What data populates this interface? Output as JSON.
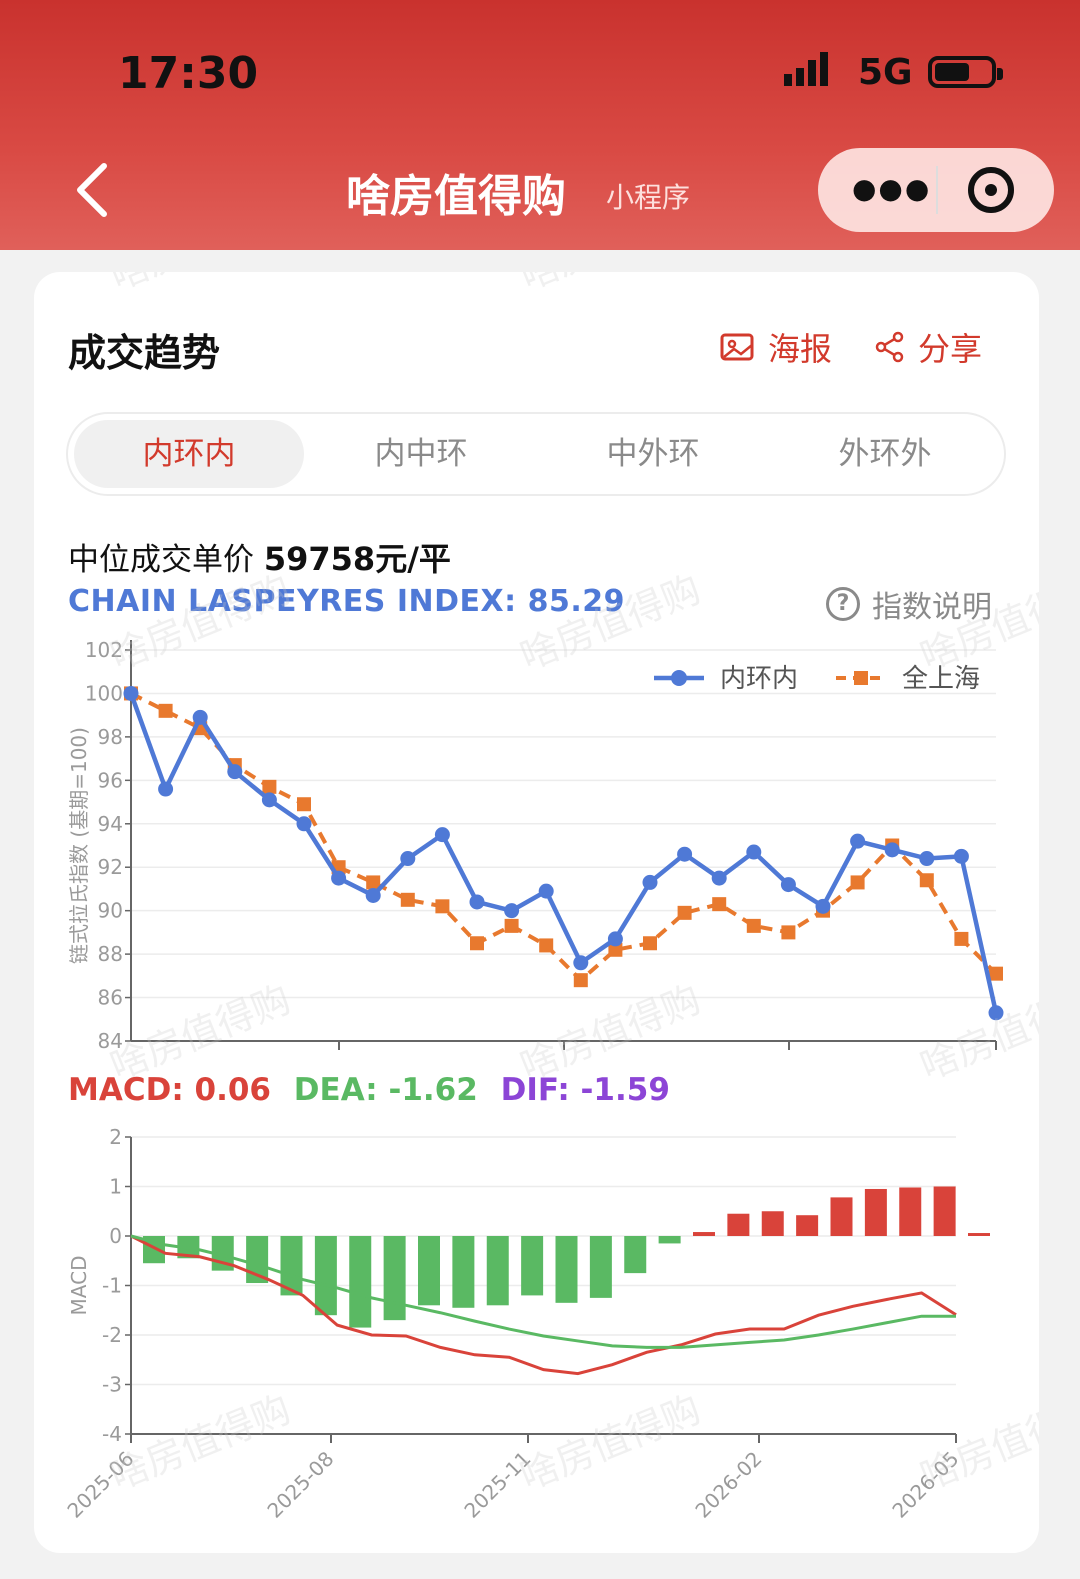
{
  "status_bar": {
    "time": "17:30",
    "network": "5G"
  },
  "nav": {
    "title": "啥房值得购",
    "subtitle": "小程序",
    "menu_icon": "more-dots-icon",
    "close_icon": "target-circle-icon",
    "back_icon": "chevron-left-icon"
  },
  "card": {
    "title": "成交趋势",
    "actions": [
      {
        "label": "海报",
        "icon": "image-icon"
      },
      {
        "label": "分享",
        "icon": "share-icon"
      }
    ],
    "tabs": [
      "内环内",
      "内中环",
      "中外环",
      "外环外"
    ],
    "active_tab": 0,
    "price_label": "中位成交单价",
    "price_value": "59758元/平",
    "index_label": "CHAIN LASPEYRES INDEX: 85.29",
    "index_help": "指数说明",
    "help_icon": "question-circle-icon",
    "macd_summary": [
      {
        "text": "MACD: 0.06",
        "color": "#d9433a"
      },
      {
        "text": "DEA: -1.62",
        "color": "#5ab963"
      },
      {
        "text": "DIF: -1.59",
        "color": "#8c45d6"
      }
    ]
  },
  "watermark": "啥房值得购",
  "chart_data": [
    {
      "type": "line",
      "ylabel": "链式拉氏指数 (基期=100)",
      "ylim": [
        84,
        102
      ],
      "yticks": [
        84,
        86,
        88,
        90,
        92,
        94,
        96,
        98,
        100,
        102
      ],
      "legend_position": "top-right",
      "grid": true,
      "series": [
        {
          "name": "内环内",
          "color": "#4f79d6",
          "style": "solid-circle",
          "values": [
            100.0,
            95.6,
            98.9,
            96.4,
            95.1,
            94.0,
            91.5,
            90.7,
            92.4,
            93.5,
            90.4,
            90.0,
            90.9,
            87.6,
            88.7,
            91.3,
            92.6,
            91.5,
            92.7,
            91.2,
            90.2,
            93.2,
            92.8,
            92.4,
            92.5,
            85.3
          ]
        },
        {
          "name": "全上海",
          "color": "#e8792e",
          "style": "dashed-square",
          "values": [
            100.0,
            99.2,
            98.4,
            96.7,
            95.7,
            94.9,
            92.0,
            91.3,
            90.5,
            90.2,
            88.5,
            89.3,
            88.4,
            86.8,
            88.2,
            88.5,
            89.9,
            90.3,
            89.3,
            89.0,
            90.0,
            91.3,
            93.0,
            91.4,
            88.7,
            87.1
          ]
        }
      ]
    },
    {
      "type": "bar",
      "ylabel": "MACD",
      "ylim": [
        -4,
        2
      ],
      "yticks": [
        -4,
        -3,
        -2,
        -1,
        0,
        1,
        2
      ],
      "grid": true,
      "x_tick_labels": [
        "2025-06",
        "2025-08",
        "2025-11",
        "2026-02",
        "2026-05"
      ],
      "pos_color": "#d9433a",
      "neg_color": "#5ab963",
      "histogram": [
        -0.55,
        -0.45,
        -0.7,
        -0.95,
        -1.2,
        -1.6,
        -1.85,
        -1.7,
        -1.4,
        -1.45,
        -1.4,
        -1.2,
        -1.35,
        -1.25,
        -0.75,
        -0.15,
        0.08,
        0.45,
        0.5,
        0.42,
        0.78,
        0.95,
        0.98,
        1.0,
        0.06
      ],
      "lines": [
        {
          "name": "DIF",
          "color": "#d9433a",
          "values": [
            0,
            -0.35,
            -0.42,
            -0.6,
            -0.88,
            -1.2,
            -1.8,
            -2.0,
            -2.02,
            -2.25,
            -2.4,
            -2.45,
            -2.7,
            -2.78,
            -2.6,
            -2.35,
            -2.2,
            -1.98,
            -1.88,
            -1.88,
            -1.6,
            -1.42,
            -1.28,
            -1.15,
            -1.59
          ]
        },
        {
          "name": "DEA",
          "color": "#5ab963",
          "values": [
            0,
            -0.18,
            -0.28,
            -0.45,
            -0.65,
            -0.88,
            -1.05,
            -1.25,
            -1.4,
            -1.55,
            -1.72,
            -1.88,
            -2.02,
            -2.12,
            -2.22,
            -2.25,
            -2.25,
            -2.2,
            -2.15,
            -2.1,
            -2.0,
            -1.88,
            -1.75,
            -1.62,
            -1.62
          ]
        }
      ]
    }
  ]
}
